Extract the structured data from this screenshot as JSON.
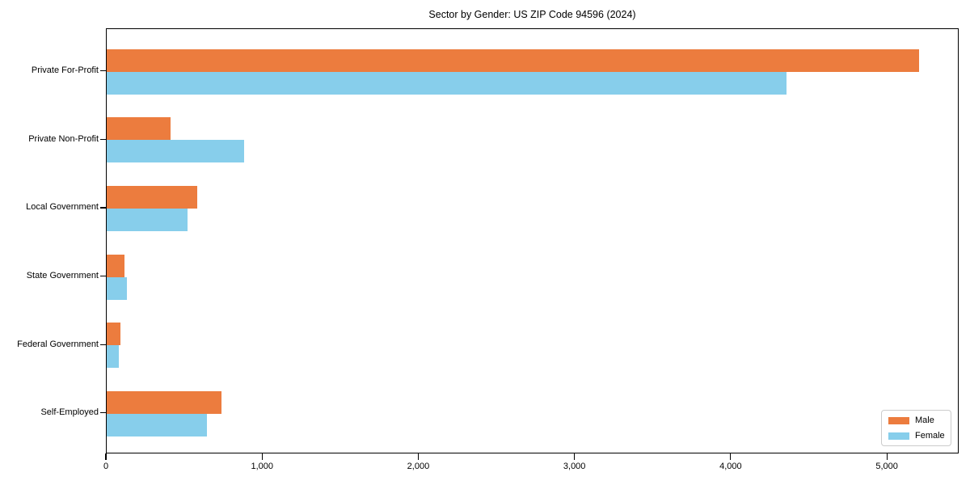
{
  "title": "Sector by Gender: US ZIP Code 94596 (2024)",
  "chart_data": {
    "type": "bar",
    "orientation": "horizontal",
    "title": "Sector by Gender: US ZIP Code 94596 (2024)",
    "categories": [
      "Private For-Profit",
      "Private Non-Profit",
      "Local Government",
      "State Government",
      "Federal Government",
      "Self-Employed"
    ],
    "series": [
      {
        "name": "Male",
        "color": "#EC7C3E",
        "values": [
          5200,
          410,
          580,
          115,
          90,
          735
        ]
      },
      {
        "name": "Female",
        "color": "#87CEEB",
        "values": [
          4350,
          880,
          515,
          130,
          75,
          640
        ]
      }
    ],
    "xlabel": "",
    "ylabel": "",
    "xlim": [
      0,
      5460
    ],
    "xticks": [
      0,
      1000,
      2000,
      3000,
      4000,
      5000
    ],
    "xtick_labels": [
      "0",
      "1,000",
      "2,000",
      "3,000",
      "4,000",
      "5,000"
    ],
    "legend_position": "lower right",
    "grid": false,
    "background": "#ffffff"
  }
}
